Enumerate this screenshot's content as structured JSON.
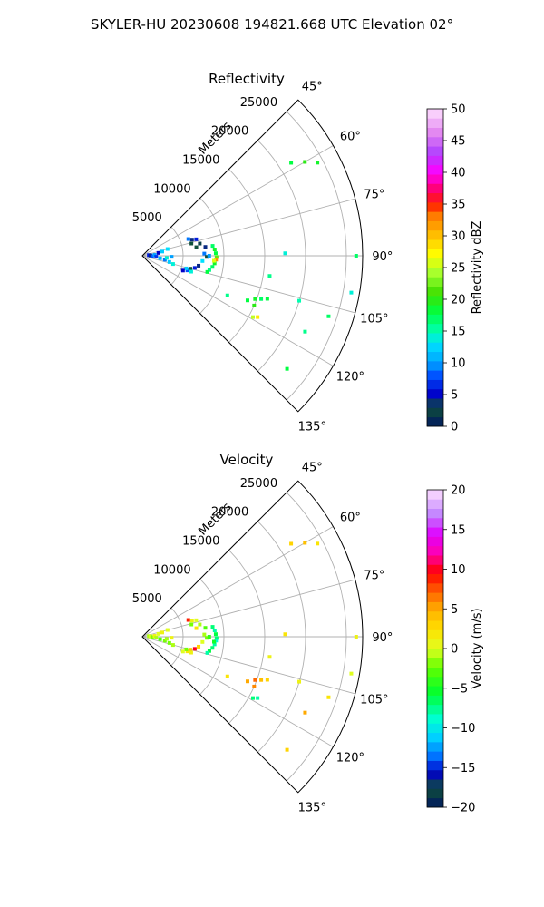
{
  "figure": {
    "suptitle": "SKYLER-HU  20230608  194821.668 UTC Elevation 02°"
  },
  "chart_data": [
    {
      "type": "scatter",
      "projection": "polar-sector",
      "title": "Reflectivity",
      "range_label": "Meters",
      "range_max": 27000,
      "range_ticks": [
        5000,
        10000,
        15000,
        20000,
        25000
      ],
      "range_tick_labels": [
        "5000",
        "10000",
        "15000",
        "20000",
        "25000"
      ],
      "azimuth_range": [
        45,
        135
      ],
      "azimuth_ticks": [
        45,
        60,
        75,
        90,
        105,
        120,
        135
      ],
      "azimuth_tick_labels": [
        "45°",
        "60°",
        "75°",
        "90°",
        "105°",
        "120°",
        "135°"
      ],
      "grid": true,
      "colorbar": {
        "label": "Reflectivity dBZ",
        "min": 0,
        "max": 50,
        "ticks": [
          0,
          5,
          10,
          15,
          20,
          25,
          30,
          35,
          40,
          45,
          50
        ],
        "tick_labels": [
          "0",
          "5",
          "10",
          "15",
          "20",
          "25",
          "30",
          "35",
          "40",
          "45",
          "50"
        ],
        "colormap": "dbz"
      },
      "points": [
        {
          "r": 800,
          "az": 84,
          "v": 6
        },
        {
          "r": 1000,
          "az": 88,
          "v": 4
        },
        {
          "r": 1200,
          "az": 92,
          "v": 8
        },
        {
          "r": 1500,
          "az": 86,
          "v": 10
        },
        {
          "r": 1700,
          "az": 94,
          "v": 7
        },
        {
          "r": 2000,
          "az": 80,
          "v": 5
        },
        {
          "r": 2200,
          "az": 98,
          "v": 11
        },
        {
          "r": 2500,
          "az": 78,
          "v": 12
        },
        {
          "r": 2800,
          "az": 100,
          "v": 9
        },
        {
          "r": 3000,
          "az": 95,
          "v": 14
        },
        {
          "r": 3200,
          "az": 75,
          "v": 13
        },
        {
          "r": 3400,
          "az": 103,
          "v": 12
        },
        {
          "r": 3600,
          "az": 92,
          "v": 10
        },
        {
          "r": 3900,
          "az": 105,
          "v": 14
        },
        {
          "r": 6000,
          "az": 70,
          "v": 9
        },
        {
          "r": 6400,
          "az": 72,
          "v": 4
        },
        {
          "r": 6200,
          "az": 76,
          "v": 3
        },
        {
          "r": 6900,
          "az": 73,
          "v": 6
        },
        {
          "r": 7200,
          "az": 78,
          "v": 2
        },
        {
          "r": 6700,
          "az": 81,
          "v": 3
        },
        {
          "r": 7800,
          "az": 82,
          "v": 4
        },
        {
          "r": 7600,
          "az": 88,
          "v": 9
        },
        {
          "r": 7900,
          "az": 91,
          "v": 3
        },
        {
          "r": 8200,
          "az": 90,
          "v": 10
        },
        {
          "r": 7400,
          "az": 95,
          "v": 13
        },
        {
          "r": 7000,
          "az": 100,
          "v": 4
        },
        {
          "r": 6600,
          "az": 103,
          "v": 6
        },
        {
          "r": 6100,
          "az": 105,
          "v": 3
        },
        {
          "r": 5800,
          "az": 108,
          "v": 8
        },
        {
          "r": 5600,
          "az": 106,
          "v": 12
        },
        {
          "r": 6300,
          "az": 108,
          "v": 14
        },
        {
          "r": 5300,
          "az": 110,
          "v": 5
        },
        {
          "r": 8700,
          "az": 82,
          "v": 17
        },
        {
          "r": 8900,
          "az": 85,
          "v": 19
        },
        {
          "r": 9000,
          "az": 88,
          "v": 18
        },
        {
          "r": 9100,
          "az": 91,
          "v": 22
        },
        {
          "r": 9050,
          "az": 93,
          "v": 32
        },
        {
          "r": 8900,
          "az": 96,
          "v": 19
        },
        {
          "r": 8700,
          "az": 99,
          "v": 17
        },
        {
          "r": 8400,
          "az": 102,
          "v": 16
        },
        {
          "r": 8200,
          "az": 104,
          "v": 18
        },
        {
          "r": 8800,
          "az": 94,
          "v": 26
        },
        {
          "r": 14000,
          "az": 113,
          "v": 18
        },
        {
          "r": 14800,
          "az": 111,
          "v": 19
        },
        {
          "r": 15500,
          "az": 110,
          "v": 17
        },
        {
          "r": 16200,
          "az": 109,
          "v": 18
        },
        {
          "r": 15000,
          "az": 114,
          "v": 20
        },
        {
          "r": 11500,
          "az": 115,
          "v": 16
        },
        {
          "r": 16000,
          "az": 118,
          "v": 28
        },
        {
          "r": 15500,
          "az": 119,
          "v": 25
        },
        {
          "r": 21500,
          "az": 58,
          "v": 18
        },
        {
          "r": 23000,
          "az": 60,
          "v": 20
        },
        {
          "r": 24300,
          "az": 62,
          "v": 19
        },
        {
          "r": 17500,
          "az": 89,
          "v": 14
        },
        {
          "r": 26200,
          "az": 90,
          "v": 17
        },
        {
          "r": 15800,
          "az": 99,
          "v": 16
        },
        {
          "r": 26000,
          "az": 100,
          "v": 14
        },
        {
          "r": 20000,
          "az": 106,
          "v": 15
        },
        {
          "r": 24000,
          "az": 108,
          "v": 17
        },
        {
          "r": 22000,
          "az": 115,
          "v": 16
        },
        {
          "r": 22500,
          "az": 128,
          "v": 18
        }
      ]
    },
    {
      "type": "scatter",
      "projection": "polar-sector",
      "title": "Velocity",
      "range_label": "Meters",
      "range_max": 27000,
      "range_ticks": [
        5000,
        10000,
        15000,
        20000,
        25000
      ],
      "range_tick_labels": [
        "5000",
        "10000",
        "15000",
        "20000",
        "25000"
      ],
      "azimuth_range": [
        45,
        135
      ],
      "azimuth_ticks": [
        45,
        60,
        75,
        90,
        105,
        120,
        135
      ],
      "azimuth_tick_labels": [
        "45°",
        "60°",
        "75°",
        "90°",
        "105°",
        "120°",
        "135°"
      ],
      "grid": true,
      "colorbar": {
        "label": "Velocity (m/s)",
        "min": -20,
        "max": 20,
        "ticks": [
          -20,
          -15,
          -10,
          -5,
          0,
          5,
          10,
          15,
          20
        ],
        "tick_labels": [
          "−20",
          "−15",
          "−10",
          "−5",
          "0",
          "5",
          "10",
          "15",
          "20"
        ],
        "colormap": "velocity"
      },
      "points": [
        {
          "r": 800,
          "az": 84,
          "v": -1
        },
        {
          "r": 1000,
          "az": 88,
          "v": 0
        },
        {
          "r": 1200,
          "az": 92,
          "v": -2
        },
        {
          "r": 1500,
          "az": 86,
          "v": 1
        },
        {
          "r": 1700,
          "az": 94,
          "v": -1
        },
        {
          "r": 2000,
          "az": 80,
          "v": 0
        },
        {
          "r": 2200,
          "az": 98,
          "v": -3
        },
        {
          "r": 2500,
          "az": 78,
          "v": 1
        },
        {
          "r": 2800,
          "az": 100,
          "v": -2
        },
        {
          "r": 3000,
          "az": 95,
          "v": -1
        },
        {
          "r": 3200,
          "az": 75,
          "v": 0
        },
        {
          "r": 3400,
          "az": 103,
          "v": -2
        },
        {
          "r": 3600,
          "az": 92,
          "v": 1
        },
        {
          "r": 3900,
          "az": 105,
          "v": -1
        },
        {
          "r": 6000,
          "az": 70,
          "v": 9
        },
        {
          "r": 6400,
          "az": 72,
          "v": 1
        },
        {
          "r": 6200,
          "az": 76,
          "v": -2
        },
        {
          "r": 6900,
          "az": 73,
          "v": 0
        },
        {
          "r": 7200,
          "az": 78,
          "v": -1
        },
        {
          "r": 6700,
          "az": 81,
          "v": 2
        },
        {
          "r": 7800,
          "az": 82,
          "v": -3
        },
        {
          "r": 7600,
          "az": 88,
          "v": -1
        },
        {
          "r": 7900,
          "az": 91,
          "v": -2
        },
        {
          "r": 8200,
          "az": 90,
          "v": -4
        },
        {
          "r": 7400,
          "az": 95,
          "v": 0
        },
        {
          "r": 7000,
          "az": 100,
          "v": 3
        },
        {
          "r": 6600,
          "az": 103,
          "v": 10
        },
        {
          "r": 6100,
          "az": 105,
          "v": 4
        },
        {
          "r": 5800,
          "az": 108,
          "v": 2
        },
        {
          "r": 5600,
          "az": 106,
          "v": -2
        },
        {
          "r": 6300,
          "az": 108,
          "v": 1
        },
        {
          "r": 5300,
          "az": 110,
          "v": 0
        },
        {
          "r": 8700,
          "az": 82,
          "v": -7
        },
        {
          "r": 8900,
          "az": 85,
          "v": -8
        },
        {
          "r": 9000,
          "az": 88,
          "v": -6
        },
        {
          "r": 9100,
          "az": 91,
          "v": -7
        },
        {
          "r": 9050,
          "az": 93,
          "v": -9
        },
        {
          "r": 8900,
          "az": 96,
          "v": -8
        },
        {
          "r": 8700,
          "az": 99,
          "v": -7
        },
        {
          "r": 8400,
          "az": 102,
          "v": -6
        },
        {
          "r": 8200,
          "az": 104,
          "v": -8
        },
        {
          "r": 8800,
          "az": 94,
          "v": -5
        },
        {
          "r": 14000,
          "az": 113,
          "v": 5
        },
        {
          "r": 14800,
          "az": 111,
          "v": 7
        },
        {
          "r": 15500,
          "az": 110,
          "v": 4
        },
        {
          "r": 16200,
          "az": 109,
          "v": 3
        },
        {
          "r": 15000,
          "az": 114,
          "v": 6
        },
        {
          "r": 11500,
          "az": 115,
          "v": 2
        },
        {
          "r": 16000,
          "az": 118,
          "v": -8
        },
        {
          "r": 15500,
          "az": 119,
          "v": -7
        },
        {
          "r": 21500,
          "az": 58,
          "v": 3
        },
        {
          "r": 23000,
          "az": 60,
          "v": 4
        },
        {
          "r": 24300,
          "az": 62,
          "v": 2
        },
        {
          "r": 17500,
          "az": 89,
          "v": 2
        },
        {
          "r": 26200,
          "az": 90,
          "v": 1
        },
        {
          "r": 15800,
          "az": 99,
          "v": 1
        },
        {
          "r": 26000,
          "az": 100,
          "v": 0
        },
        {
          "r": 20000,
          "az": 106,
          "v": 1
        },
        {
          "r": 24000,
          "az": 108,
          "v": 2
        },
        {
          "r": 22000,
          "az": 115,
          "v": 5
        },
        {
          "r": 22500,
          "az": 128,
          "v": 3
        }
      ]
    }
  ]
}
